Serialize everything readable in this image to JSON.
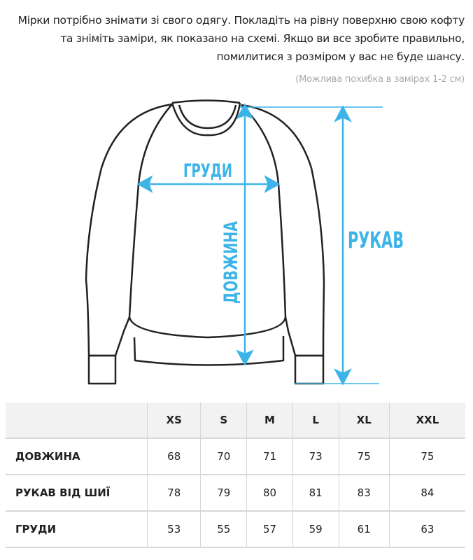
{
  "intro_text": "Мірки потрібно знімати зі свого одягу. Покладіть на рівну поверхню свою кофту та зніміть заміри, як показано на схемі. Якщо ви все зробите правильно, помилитися з розміром у вас не буде шансу.",
  "note": "(Можлива похибка в замірах 1-2 см)",
  "diagram": {
    "chest_label": "ГРУДИ",
    "length_label": "ДОВЖИНА",
    "sleeve_label": "РУКАВ",
    "accent_color": "#3cb4e8"
  },
  "table": {
    "headers": [
      "",
      "XS",
      "S",
      "M",
      "L",
      "XL",
      "XXL"
    ],
    "rows": [
      {
        "label": "ДОВЖИНА",
        "values": [
          "68",
          "70",
          "71",
          "73",
          "75",
          "75"
        ]
      },
      {
        "label": "РУКАВ ВІД ШИЇ",
        "values": [
          "78",
          "79",
          "80",
          "81",
          "83",
          "84"
        ]
      },
      {
        "label": "ГРУДИ",
        "values": [
          "53",
          "55",
          "57",
          "59",
          "61",
          "63"
        ]
      }
    ]
  }
}
